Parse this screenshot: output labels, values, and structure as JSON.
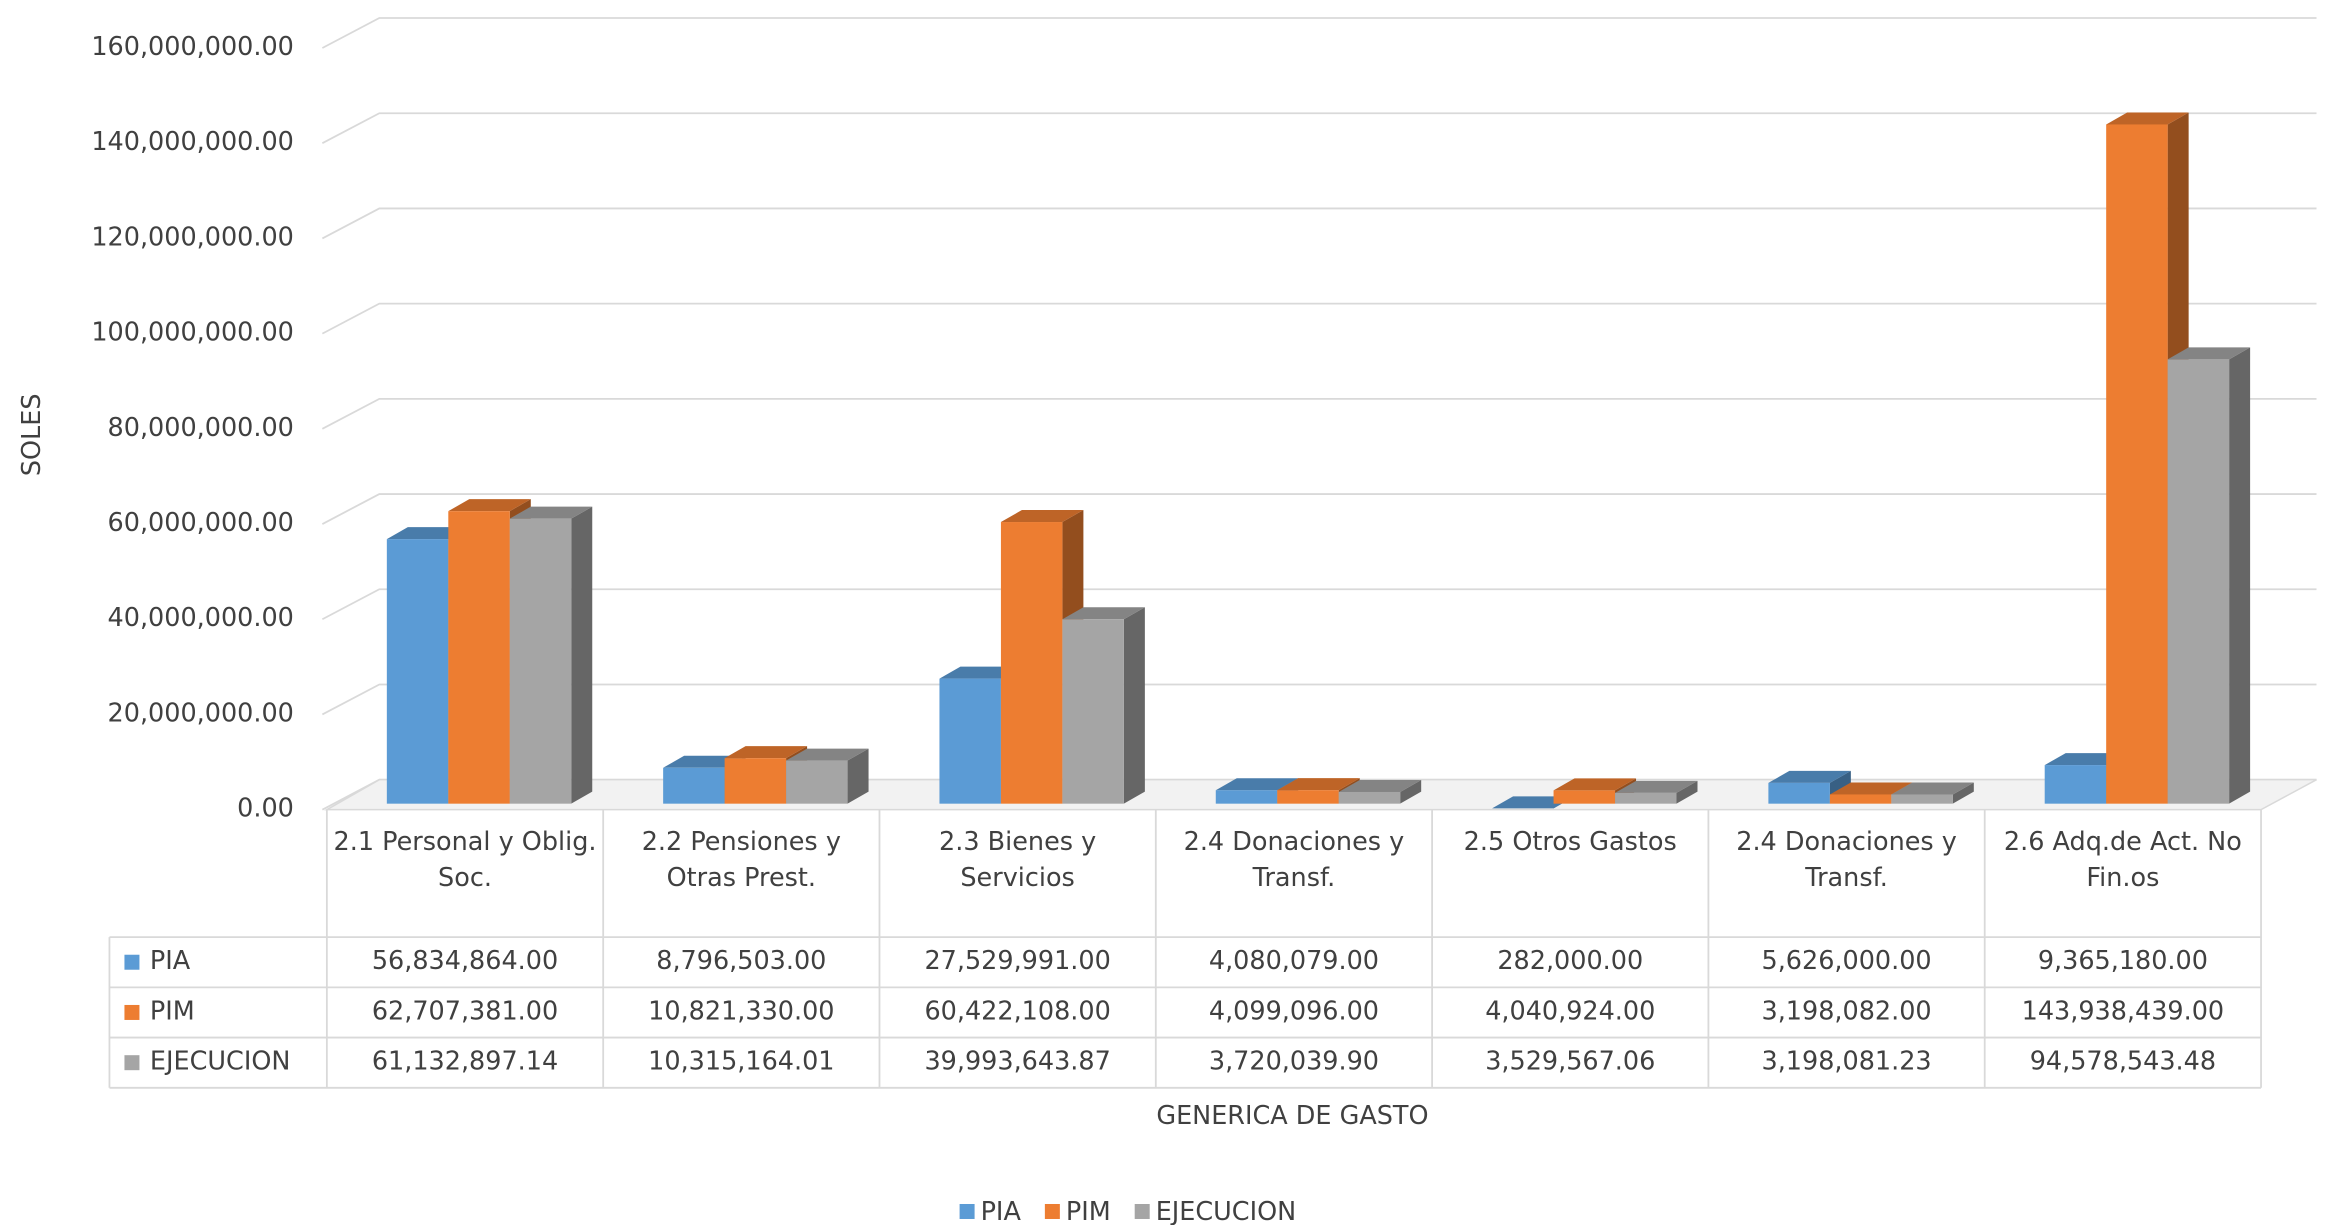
{
  "chart_data": {
    "type": "bar3d",
    "y_label": "SOLES",
    "x_label": "GENERICA DE GASTO",
    "categories": [
      "2.1 Personal y Oblig. Soc.",
      "2.2 Pensiones y Otras Prest.",
      "2.3 Bienes y Servicios",
      "2.4 Donaciones y Transf.",
      "2.5 Otros Gastos",
      "2.4 Donaciones y Transf.",
      "2.6 Adq.de Act. No Fin.os"
    ],
    "series": [
      {
        "name": "PIA",
        "color": "#5b9bd5",
        "values": [
          56834864,
          8796503,
          27529991,
          4080079,
          282000,
          5626000,
          9365180
        ],
        "value_labels": [
          "56,834,864.00",
          "8,796,503.00",
          "27,529,991.00",
          "4,080,079.00",
          "282,000.00",
          "5,626,000.00",
          "9,365,180.00"
        ]
      },
      {
        "name": "PIM",
        "color": "#ed7d31",
        "values": [
          62707381,
          10821330,
          60422108,
          4099096,
          4040924,
          3198082,
          143938439
        ],
        "value_labels": [
          "62,707,381.00",
          "10,821,330.00",
          "60,422,108.00",
          "4,099,096.00",
          "4,040,924.00",
          "3,198,082.00",
          "143,938,439.00"
        ]
      },
      {
        "name": "EJECUCION",
        "color": "#a5a5a5",
        "values": [
          61132897.14,
          10315164.01,
          39993643.87,
          3720039.9,
          3529567.06,
          3198081.23,
          94578543.48
        ],
        "value_labels": [
          "61,132,897.14",
          "10,315,164.01",
          "39,993,643.87",
          "3,720,039.90",
          "3,529,567.06",
          "3,198,081.23",
          "94,578,543.48"
        ]
      }
    ],
    "ylim": [
      0,
      160000000
    ],
    "yticks": [
      {
        "value": 0,
        "label": "0.00"
      },
      {
        "value": 20000000,
        "label": "20,000,000.00"
      },
      {
        "value": 40000000,
        "label": "40,000,000.00"
      },
      {
        "value": 60000000,
        "label": "60,000,000.00"
      },
      {
        "value": 80000000,
        "label": "80,000,000.00"
      },
      {
        "value": 100000000,
        "label": "100,000,000.00"
      },
      {
        "value": 120000000,
        "label": "120,000,000.00"
      },
      {
        "value": 140000000,
        "label": "140,000,000.00"
      },
      {
        "value": 160000000,
        "label": "160,000,000.00"
      }
    ],
    "grid": true,
    "legend": "bottom"
  }
}
